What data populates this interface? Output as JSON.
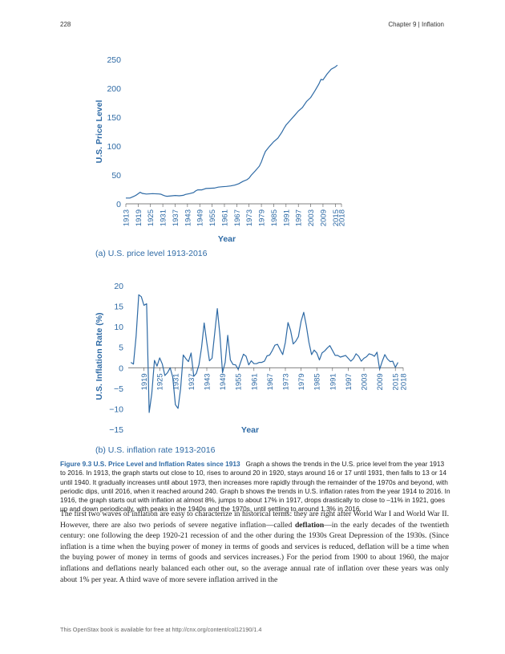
{
  "header": {
    "page_number": "228",
    "chapter": "Chapter 9 | Inflation"
  },
  "chart_a": {
    "caption": "(a) U.S. price level 1913-2016",
    "chart_data": {
      "type": "line",
      "ylabel": "U.S. Price Level",
      "xlabel": "Year",
      "xlim": [
        1913,
        2018
      ],
      "ylim": [
        0,
        250
      ],
      "yticks": [
        0,
        50,
        100,
        150,
        200,
        250
      ],
      "xtick_labels": [
        "1913",
        "1919",
        "1925",
        "1931",
        "1937",
        "1943",
        "1949",
        "1955",
        "1961",
        "1967",
        "1973",
        "1979",
        "1985",
        "1991",
        "1997",
        "2003",
        "2009",
        "2015",
        "2018"
      ],
      "series": [
        {
          "x": [
            1913,
            1915,
            1917,
            1918,
            1920,
            1921,
            1923,
            1926,
            1929,
            1930,
            1931,
            1932,
            1933,
            1935,
            1937,
            1939,
            1941,
            1942,
            1944,
            1946,
            1947,
            1948,
            1950,
            1952,
            1954,
            1956,
            1958,
            1960,
            1962,
            1964,
            1966,
            1968,
            1970,
            1972,
            1973,
            1974,
            1976,
            1978,
            1979,
            1980,
            1981,
            1983,
            1985,
            1987,
            1989,
            1990,
            1991,
            1993,
            1995,
            1997,
            1999,
            2001,
            2003,
            2005,
            2007,
            2008,
            2009,
            2011,
            2013,
            2015,
            2016
          ],
          "y": [
            10,
            10,
            13,
            15,
            20,
            18,
            17,
            17.7,
            17.1,
            16.7,
            15.2,
            13.7,
            13,
            13.7,
            14.4,
            13.9,
            14.7,
            16.3,
            17.6,
            19.5,
            22.3,
            24.1,
            24.1,
            26.5,
            26.9,
            27.2,
            28.9,
            29.6,
            30.2,
            31,
            32.4,
            34.8,
            38.8,
            41.8,
            44.4,
            49.3,
            56.9,
            65.2,
            72.6,
            82.4,
            90.9,
            99.6,
            107.6,
            113.6,
            124,
            130.7,
            136.2,
            144.5,
            152.4,
            160.5,
            166.6,
            177.1,
            184,
            195.3,
            207.3,
            215.3,
            214.5,
            224.9,
            233,
            237,
            240
          ]
        }
      ]
    }
  },
  "chart_b": {
    "caption": "(b) U.S. inflation rate 1913-2016",
    "chart_data": {
      "type": "line",
      "ylabel": "U.S. Inflation Rate (%)",
      "xlabel": "Year",
      "xlim": [
        1913,
        2018
      ],
      "ylim": [
        -15,
        20
      ],
      "yticks": [
        -15,
        -10,
        -5,
        0,
        5,
        10,
        15,
        20
      ],
      "ytick_labels": [
        "−15",
        "−10",
        "−5",
        "0",
        "5",
        "10",
        "15",
        "20"
      ],
      "xtick_labels": [
        "1919",
        "1925",
        "1931",
        "1937",
        "1943",
        "1949",
        "1955",
        "1961",
        "1967",
        "1973",
        "1979",
        "1985",
        "1991",
        "1997",
        "2003",
        "2009",
        "2015",
        "2018"
      ],
      "series": [
        {
          "x": [
            1914,
            1915,
            1916,
            1917,
            1918,
            1919,
            1920,
            1921,
            1922,
            1923,
            1924,
            1925,
            1926,
            1927,
            1928,
            1929,
            1930,
            1931,
            1932,
            1933,
            1934,
            1935,
            1936,
            1937,
            1938,
            1939,
            1940,
            1941,
            1942,
            1943,
            1944,
            1945,
            1946,
            1947,
            1948,
            1949,
            1950,
            1951,
            1952,
            1953,
            1954,
            1955,
            1956,
            1957,
            1958,
            1959,
            1960,
            1961,
            1962,
            1963,
            1964,
            1965,
            1966,
            1967,
            1968,
            1969,
            1970,
            1971,
            1972,
            1973,
            1974,
            1975,
            1976,
            1977,
            1978,
            1979,
            1980,
            1981,
            1982,
            1983,
            1984,
            1985,
            1986,
            1987,
            1988,
            1989,
            1990,
            1991,
            1992,
            1993,
            1994,
            1995,
            1996,
            1997,
            1998,
            1999,
            2000,
            2001,
            2002,
            2003,
            2004,
            2005,
            2006,
            2007,
            2008,
            2009,
            2010,
            2011,
            2012,
            2013,
            2014,
            2015,
            2016
          ],
          "y": [
            1.3,
            0.9,
            7.7,
            17.8,
            17.3,
            15.2,
            15.6,
            -10.9,
            -6.2,
            1.8,
            0.4,
            2.4,
            0.9,
            -1.9,
            -1.2,
            0,
            -2.3,
            -9,
            -9.9,
            -5.1,
            3.1,
            2.2,
            1.5,
            3.6,
            -2.1,
            -1.4,
            0.7,
            5,
            10.9,
            6.1,
            1.7,
            2.3,
            8.3,
            14.4,
            8.1,
            -1.2,
            1.3,
            7.9,
            1.9,
            0.8,
            0.7,
            -0.4,
            1.5,
            3.3,
            2.8,
            0.7,
            1.7,
            1,
            1,
            1.3,
            1.3,
            1.6,
            2.9,
            3.1,
            4.2,
            5.5,
            5.7,
            4.4,
            3.2,
            6.2,
            11,
            9.1,
            5.8,
            6.5,
            7.6,
            11.3,
            13.5,
            10.3,
            6.2,
            3.2,
            4.3,
            3.6,
            1.9,
            3.6,
            4.1,
            4.8,
            5.4,
            4.2,
            3,
            3,
            2.6,
            2.8,
            3,
            2.3,
            1.6,
            2.2,
            3.4,
            2.8,
            1.6,
            2.3,
            2.7,
            3.4,
            3.2,
            2.8,
            3.8,
            -0.4,
            1.6,
            3.2,
            2.1,
            1.5,
            1.6,
            0.1,
            1.3
          ]
        }
      ]
    }
  },
  "caption": {
    "label": "Figure 9.3 U.S. Price Level and Inflation Rates since 1913",
    "text": "Graph a shows the trends in the U.S. price level from the year 1913 to 2016. In 1913, the graph starts out close to 10, rises to around 20 in 1920, stays around 16 or 17 until 1931, then falls to 13 or 14 until 1940. It gradually increases until about 1973, then increases more rapidly through the remainder of the 1970s and beyond, with periodic dips, until 2016, when it reached around 240. Graph b shows the trends in U.S. inflation rates from the year 1914 to 2016. In 1916, the graph starts out with inflation at almost 8%, jumps to about 17% in 1917, drops drastically to close to –11% in 1921, goes up and down periodically, with peaks in the 1940s and the 1970s, until settling to around 1.3% in 2016."
  },
  "body": {
    "p1": "The first two waves of inflation are easy to characterize in historical terms: they are right after World War I and World War II. However, there are also two periods of severe negative inflation—called ",
    "term": "deflation",
    "p2": "—in the early decades of the twentieth century: one following the deep 1920-21 recession of and the other during the 1930s Great Depression of the 1930s. (Since inflation is a time when the buying power of money in terms of goods and services is reduced, deflation will be a time when the buying power of money in terms of goods and services increases.) For the period from 1900 to about 1960, the major inflations and deflations nearly balanced each other out, so the average annual rate of inflation over these years was only about 1% per year. A third wave of more severe inflation arrived in the"
  },
  "footer": {
    "text": "This OpenStax book is available for free at http://cnx.org/content/col12190/1.4"
  },
  "colors": {
    "line": "#2e6aa5",
    "axis_text": "#2e6aa5",
    "caption_label": "#2e6aa5"
  }
}
